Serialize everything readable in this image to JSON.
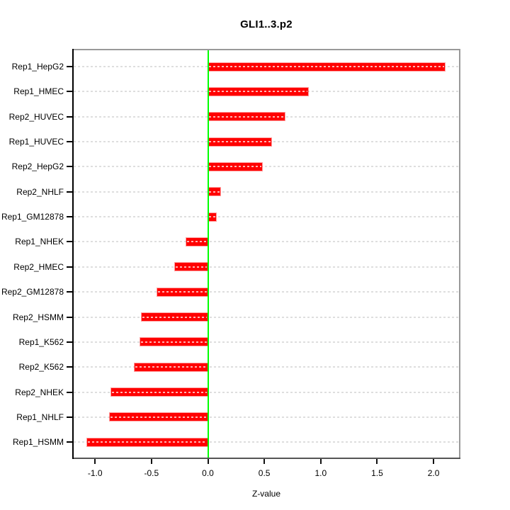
{
  "title": "GLI1..3.p2",
  "xlabel": "Z-value",
  "chart_data": {
    "type": "bar",
    "orientation": "horizontal",
    "title": "GLI1..3.p2",
    "xlabel": "Z-value",
    "ylabel": "",
    "categories": [
      "Rep1_HepG2",
      "Rep1_HMEC",
      "Rep2_HUVEC",
      "Rep1_HUVEC",
      "Rep2_HepG2",
      "Rep2_NHLF",
      "Rep1_GM12878",
      "Rep1_NHEK",
      "Rep2_HMEC",
      "Rep2_GM12878",
      "Rep2_HSMM",
      "Rep1_K562",
      "Rep2_K562",
      "Rep2_NHEK",
      "Rep1_NHLF",
      "Rep1_HSMM"
    ],
    "values": [
      2.1,
      0.89,
      0.68,
      0.56,
      0.48,
      0.11,
      0.07,
      -0.19,
      -0.29,
      -0.45,
      -0.59,
      -0.6,
      -0.65,
      -0.86,
      -0.87,
      -1.07
    ],
    "xlim": [
      -1.19,
      2.23
    ],
    "x_tick_labels": [
      "-1.0",
      "-0.5",
      "0.0",
      "0.5",
      "1.0",
      "1.5",
      "2.0"
    ],
    "x_tick_values": [
      -1.0,
      -0.5,
      0.0,
      0.5,
      1.0,
      1.5,
      2.0
    ],
    "grid": true,
    "grid_style": "dashed",
    "zero_line_value": 0,
    "legend": "none",
    "colors": {
      "bar": "#ff0000",
      "zero_line": "#00ff00",
      "grid": "#dedede",
      "box_top_right": "#999999",
      "box_bottom": "#555555",
      "axis_left": "#000000",
      "text": "#000000",
      "background": "#ffffff"
    }
  }
}
